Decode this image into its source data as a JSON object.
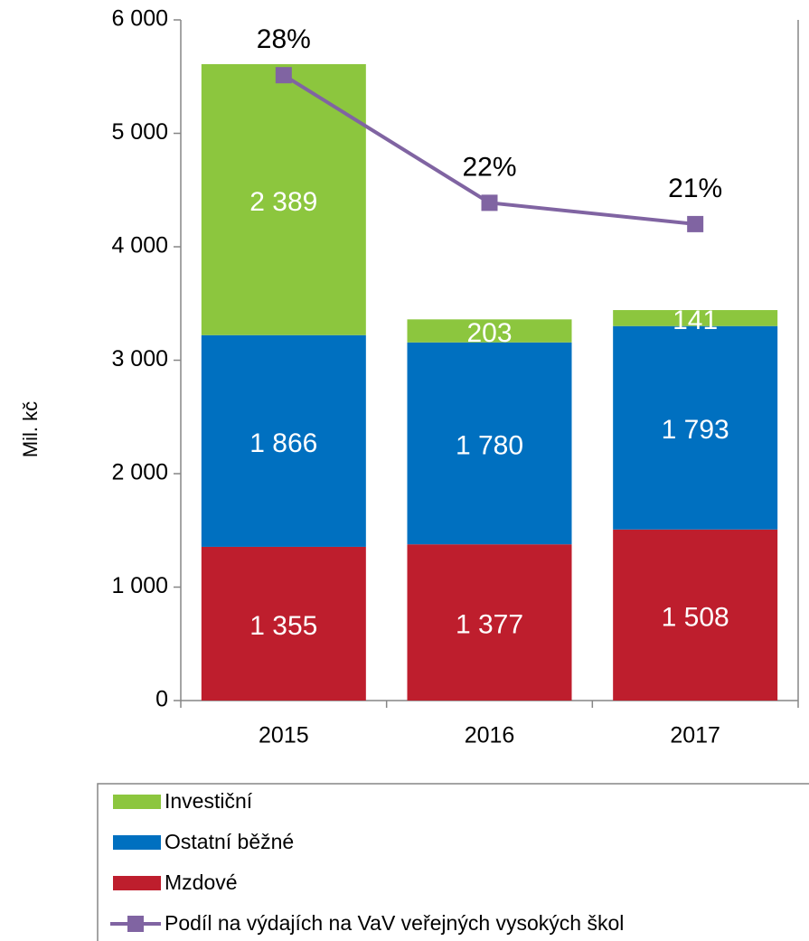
{
  "chart_data": {
    "type": "bar",
    "stacked": true,
    "y_label": "Mil. kč",
    "categories": [
      "2015",
      "2016",
      "2017"
    ],
    "series": [
      {
        "name": "Mzdové",
        "type": "bar",
        "color": "#be1e2d",
        "values": [
          1355,
          1377,
          1508
        ],
        "value_labels": [
          "1 355",
          "1 377",
          "1 508"
        ]
      },
      {
        "name": "Ostatní běžné",
        "type": "bar",
        "color": "#0070c0",
        "values": [
          1866,
          1780,
          1793
        ],
        "value_labels": [
          "1 866",
          "1 780",
          "1 793"
        ]
      },
      {
        "name": "Investiční",
        "type": "bar",
        "color": "#8cc63e",
        "values": [
          2389,
          203,
          141
        ],
        "value_labels": [
          "2 389",
          "203",
          "141"
        ]
      },
      {
        "name": "Podíl na výdajích na VaV veřejných vysokých škol",
        "type": "line",
        "axis": "y2",
        "color": "#8064a2",
        "values": [
          28,
          22,
          21
        ],
        "value_labels": [
          "28%",
          "22%",
          "21%"
        ]
      }
    ],
    "ylim": [
      0,
      6000
    ],
    "yticks": [
      0,
      {
        "value": 1000,
        "label": "1 000"
      },
      {
        "value": 2000,
        "label": "2 000"
      },
      {
        "value": 3000,
        "label": "3 000"
      },
      {
        "value": 4000,
        "label": "4 000"
      },
      {
        "value": 5000,
        "label": "5 000"
      },
      {
        "value": 6000,
        "label": "6 000"
      }
    ],
    "y2lim": [
      -1.4,
      30.6
    ],
    "legend": "bottom"
  }
}
